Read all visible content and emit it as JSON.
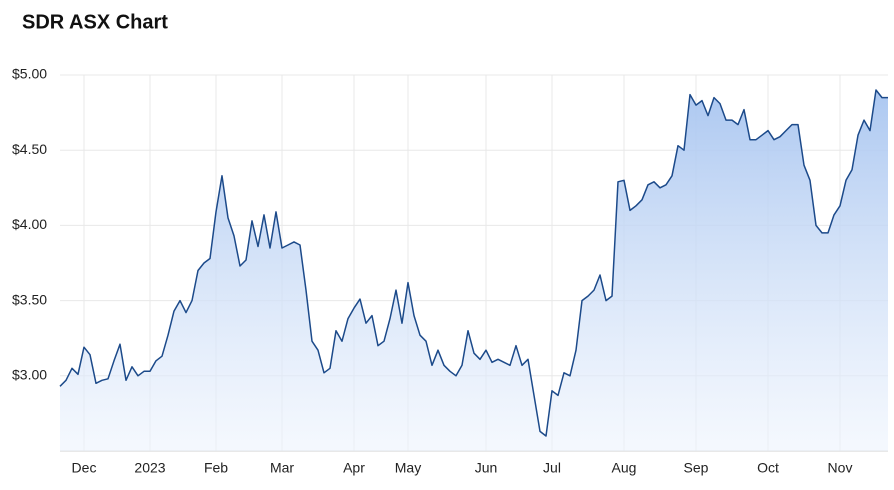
{
  "chart_data": {
    "type": "area",
    "title": "SDR ASX Chart",
    "categories": [
      null,
      null,
      null,
      null,
      "Dec",
      null,
      null,
      null,
      null,
      null,
      null,
      null,
      null,
      null,
      null,
      "2023",
      null,
      null,
      null,
      null,
      null,
      null,
      null,
      null,
      null,
      null,
      "Feb",
      null,
      null,
      null,
      null,
      null,
      null,
      null,
      null,
      null,
      null,
      "Mar",
      null,
      null,
      null,
      null,
      null,
      null,
      null,
      null,
      null,
      null,
      null,
      "Apr",
      null,
      null,
      null,
      null,
      null,
      null,
      null,
      null,
      "May",
      null,
      null,
      null,
      null,
      null,
      null,
      null,
      null,
      null,
      null,
      null,
      null,
      "Jun",
      null,
      null,
      null,
      null,
      null,
      null,
      null,
      null,
      null,
      null,
      "Jul",
      null,
      null,
      null,
      null,
      null,
      null,
      null,
      null,
      null,
      null,
      null,
      "Aug",
      null,
      null,
      null,
      null,
      null,
      null,
      null,
      null,
      null,
      null,
      null,
      "Sep",
      null,
      null,
      null,
      null,
      null,
      null,
      null,
      null,
      null,
      null,
      null,
      "Oct",
      null,
      null,
      null,
      null,
      null,
      null,
      null,
      null,
      null,
      null,
      null,
      "Nov",
      null,
      null,
      null,
      null,
      null,
      null,
      null,
      null
    ],
    "values": [
      2.93,
      2.97,
      3.05,
      3.01,
      3.19,
      3.14,
      2.95,
      2.97,
      2.98,
      3.1,
      3.21,
      2.97,
      3.06,
      3.0,
      3.03,
      3.03,
      3.1,
      3.13,
      3.27,
      3.43,
      3.5,
      3.42,
      3.5,
      3.7,
      3.75,
      3.78,
      4.09,
      4.33,
      4.05,
      3.93,
      3.73,
      3.77,
      4.03,
      3.86,
      4.07,
      3.85,
      4.09,
      3.85,
      3.87,
      3.89,
      3.87,
      3.57,
      3.23,
      3.17,
      3.02,
      3.05,
      3.3,
      3.23,
      3.38,
      3.45,
      3.51,
      3.35,
      3.4,
      3.2,
      3.23,
      3.38,
      3.57,
      3.35,
      3.62,
      3.4,
      3.27,
      3.23,
      3.07,
      3.17,
      3.07,
      3.03,
      3.0,
      3.07,
      3.3,
      3.15,
      3.11,
      3.17,
      3.09,
      3.11,
      3.09,
      3.07,
      3.2,
      3.07,
      3.11,
      2.87,
      2.63,
      2.6,
      2.9,
      2.87,
      3.02,
      3.0,
      3.17,
      3.5,
      3.53,
      3.57,
      3.67,
      3.5,
      3.53,
      4.29,
      4.3,
      4.1,
      4.13,
      4.17,
      4.27,
      4.29,
      4.25,
      4.27,
      4.33,
      4.53,
      4.5,
      4.87,
      4.8,
      4.83,
      4.73,
      4.85,
      4.81,
      4.7,
      4.7,
      4.67,
      4.77,
      4.57,
      4.57,
      4.6,
      4.63,
      4.57,
      4.59,
      4.63,
      4.67,
      4.67,
      4.4,
      4.3,
      4.0,
      3.95,
      3.95,
      4.07,
      4.13,
      4.3,
      4.37,
      4.6,
      4.7,
      4.63,
      4.9,
      4.85,
      4.85
    ],
    "color": "#1c4a8a",
    "ylim": [
      2.5,
      5.0
    ],
    "yticks": [
      {
        "value": 3,
        "label": "$3.00"
      },
      {
        "value": 3.5,
        "label": "$3.50"
      },
      {
        "value": 4,
        "label": "$4.00"
      },
      {
        "value": 4.5,
        "label": "$4.50"
      },
      {
        "value": 5,
        "label": "$5.00"
      }
    ],
    "grid": true
  }
}
